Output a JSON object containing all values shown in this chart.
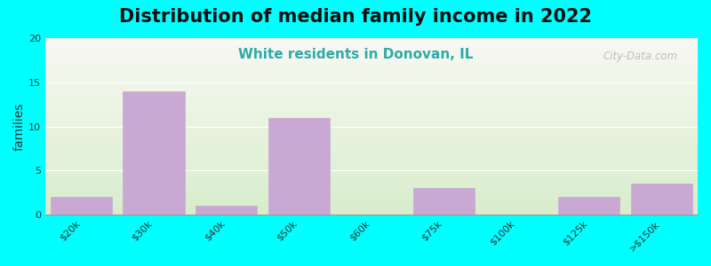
{
  "title": "Distribution of median family income in 2022",
  "subtitle": "White residents in Donovan, IL",
  "xlabel": "",
  "ylabel": "families",
  "categories": [
    "$20k",
    "$30k",
    "$40k",
    "$50k",
    "$60k",
    "$75k",
    "$100k",
    "$125k",
    ">$150k"
  ],
  "values": [
    2,
    14,
    1,
    11,
    0,
    3,
    0,
    2,
    3.5
  ],
  "bar_color": "#c9a8d4",
  "bar_edge_color": "#c9a8d4",
  "background_outer": "#00FFFF",
  "background_plot_top": "#d8edcc",
  "background_plot_bottom": "#f8f8f2",
  "title_fontsize": 15,
  "subtitle_fontsize": 11,
  "subtitle_color": "#2eaaaa",
  "ylabel_fontsize": 10,
  "tick_label_fontsize": 8,
  "ylim": [
    0,
    20
  ],
  "yticks": [
    0,
    5,
    10,
    15,
    20
  ],
  "watermark": "City-Data.com"
}
